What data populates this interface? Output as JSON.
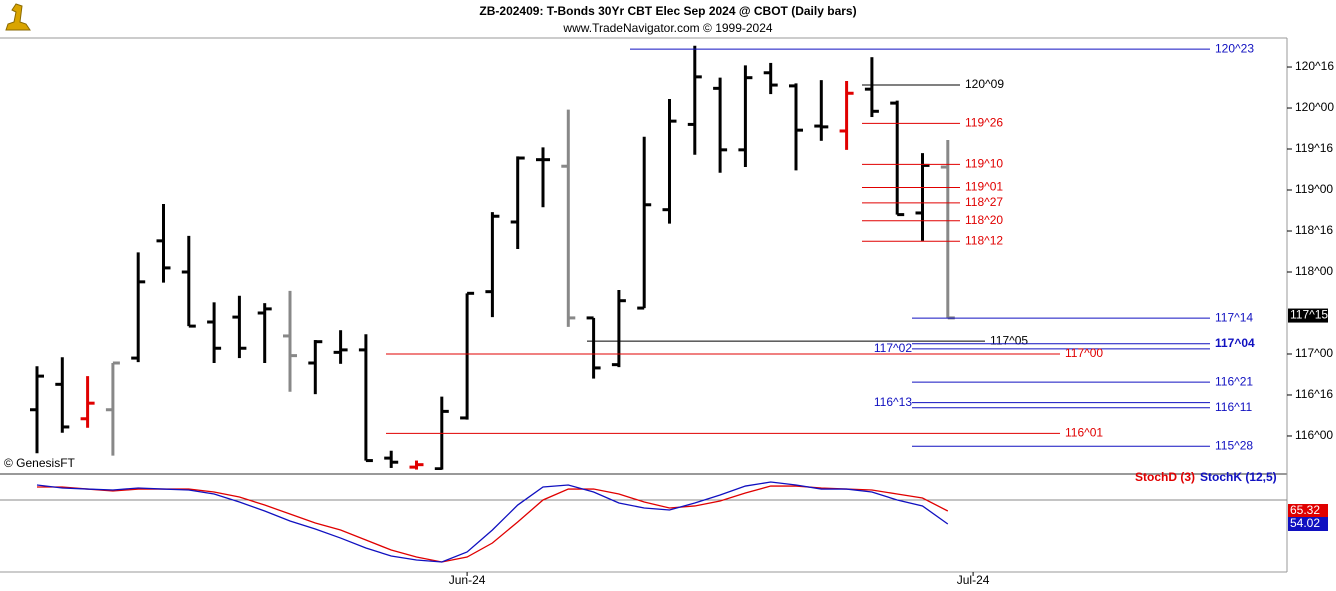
{
  "chart_data": [
    {
      "type": "ohlc",
      "title": "ZB-202409:  T-Bonds 30Yr CBT Elec Sep 2024 @ CBOT  (Daily bars)",
      "subtitle": "www.TradeNavigator.com © 1999-2024",
      "credit": "© GenesisFT",
      "categories": [
        null,
        null,
        null,
        null,
        null,
        null,
        null,
        null,
        null,
        null,
        null,
        null,
        null,
        null,
        null,
        null,
        null,
        "Jun-24",
        null,
        null,
        null,
        null,
        null,
        null,
        null,
        null,
        null,
        null,
        null,
        null,
        null,
        null,
        null,
        null,
        null,
        null,
        null,
        "Jul-24"
      ],
      "open": [
        116.32,
        116.63,
        116.21,
        116.32,
        116.95,
        118.38,
        118.0,
        117.39,
        117.45,
        117.5,
        117.22,
        116.89,
        117.02,
        117.05,
        115.73,
        115.62,
        115.6,
        116.22,
        117.76,
        118.61,
        119.37,
        119.29,
        117.44,
        116.87,
        117.56,
        118.76,
        119.8,
        120.24,
        119.49,
        120.43,
        120.27,
        119.78,
        119.72,
        120.23,
        120.06,
        118.72,
        119.28,
        null
      ],
      "high": [
        116.85,
        116.96,
        116.73,
        116.89,
        118.24,
        118.83,
        118.44,
        117.63,
        117.71,
        117.62,
        117.77,
        117.17,
        117.29,
        117.24,
        115.82,
        115.7,
        116.48,
        117.74,
        118.73,
        119.41,
        119.52,
        119.98,
        117.44,
        117.78,
        119.65,
        120.11,
        120.76,
        120.37,
        120.52,
        120.55,
        120.3,
        120.34,
        120.33,
        120.62,
        120.09,
        119.45,
        119.61,
        null
      ],
      "low": [
        115.79,
        116.04,
        116.1,
        115.76,
        116.9,
        117.87,
        117.34,
        116.89,
        116.95,
        116.89,
        116.54,
        116.51,
        116.88,
        115.7,
        115.61,
        115.59,
        115.59,
        116.2,
        117.45,
        118.28,
        118.79,
        117.33,
        116.7,
        116.84,
        117.56,
        118.59,
        119.43,
        119.21,
        119.28,
        120.17,
        119.24,
        119.6,
        119.49,
        119.89,
        118.7,
        118.38,
        117.44,
        null
      ],
      "close": [
        116.73,
        116.11,
        116.4,
        116.89,
        117.88,
        118.05,
        117.34,
        117.07,
        117.07,
        117.55,
        116.98,
        117.15,
        117.05,
        115.7,
        115.68,
        115.65,
        116.3,
        117.74,
        118.68,
        119.39,
        119.37,
        117.44,
        116.83,
        117.65,
        118.82,
        119.84,
        120.38,
        119.49,
        120.37,
        120.28,
        119.73,
        119.77,
        120.18,
        119.96,
        118.7,
        119.3,
        117.44,
        null
      ],
      "bar_colors": [
        "#000000",
        "#000000",
        "#e00000",
        "#888888",
        "#000000",
        "#000000",
        "#000000",
        "#000000",
        "#000000",
        "#000000",
        "#888888",
        "#000000",
        "#000000",
        "#000000",
        "#000000",
        "#e00000",
        "#000000",
        "#000000",
        "#000000",
        "#000000",
        "#000000",
        "#888888",
        "#000000",
        "#000000",
        "#000000",
        "#000000",
        "#000000",
        "#000000",
        "#000000",
        "#000000",
        "#000000",
        "#000000",
        "#e00000",
        "#000000",
        "#000000",
        "#000000",
        "#888888",
        null
      ],
      "ylim": [
        115.585,
        120.854
      ],
      "yticks": [
        {
          "value": 120.5,
          "label": "120^16"
        },
        {
          "value": 120,
          "label": "120^00"
        },
        {
          "value": 119.5,
          "label": "119^16"
        },
        {
          "value": 119,
          "label": "119^00"
        },
        {
          "value": 118.5,
          "label": "118^16"
        },
        {
          "value": 118,
          "label": "118^00"
        },
        {
          "value": 117,
          "label": "117^00"
        },
        {
          "value": 116.5,
          "label": "116^16"
        },
        {
          "value": 116,
          "label": "116^00"
        }
      ],
      "last_price": {
        "value": 117.46875,
        "label": "117^15"
      },
      "levels": [
        {
          "value": 120.71875,
          "label": "120^23",
          "color": "#1010c0"
        },
        {
          "value": 120.28125,
          "label": "120^09",
          "color": "#000000"
        },
        {
          "value": 119.8125,
          "label": "119^26",
          "color": "#e00000"
        },
        {
          "value": 119.3125,
          "label": "119^10",
          "color": "#e00000"
        },
        {
          "value": 119.03125,
          "label": "119^01",
          "color": "#e00000"
        },
        {
          "value": 118.84375,
          "label": "118^27",
          "color": "#e00000"
        },
        {
          "value": 118.625,
          "label": "118^20",
          "color": "#e00000"
        },
        {
          "value": 118.375,
          "label": "118^12",
          "color": "#e00000"
        },
        {
          "value": 117.4375,
          "label": "117^14",
          "color": "#1010c0"
        },
        {
          "value": 117.15625,
          "label": "117^05",
          "color": "#000000"
        },
        {
          "value": 117.125,
          "label": "117^04",
          "color": "#1010c0"
        },
        {
          "value": 117.0625,
          "label": "117^02",
          "color": "#1010c0"
        },
        {
          "value": 117.0,
          "label": "117^00",
          "color": "#e00000"
        },
        {
          "value": 116.65625,
          "label": "116^21",
          "color": "#1010c0"
        },
        {
          "value": 116.40625,
          "label": "116^13",
          "color": "#1010c0"
        },
        {
          "value": 116.34375,
          "label": "116^11",
          "color": "#1010c0"
        },
        {
          "value": 116.03125,
          "label": "116^01",
          "color": "#e00000"
        },
        {
          "value": 115.875,
          "label": "115^28",
          "color": "#1010c0"
        }
      ]
    },
    {
      "type": "line",
      "ylim": [
        12.3,
        94.0
      ],
      "series": [
        {
          "name": "StochD (3)",
          "color": "#e00000",
          "values": [
            86.2,
            86.2,
            84.4,
            82.7,
            84.4,
            84.4,
            84.4,
            81.8,
            77.5,
            70.5,
            62.7,
            54.9,
            48.8,
            40.1,
            31.4,
            25.3,
            21.0,
            25.3,
            37.5,
            55.8,
            74.9,
            84.4,
            84.4,
            80.1,
            73.1,
            67.9,
            69.7,
            74.0,
            81.0,
            87.0,
            87.0,
            85.3,
            84.4,
            83.6,
            80.1,
            76.6,
            65.32,
            null
          ]
        },
        {
          "name": "StochK (12,5)",
          "color": "#1010c0",
          "values": [
            87.9,
            85.3,
            84.4,
            83.6,
            85.3,
            84.4,
            83.6,
            80.1,
            73.1,
            65.3,
            56.6,
            49.7,
            41.8,
            33.2,
            26.2,
            22.7,
            21.0,
            29.7,
            48.8,
            70.5,
            86.2,
            87.9,
            81.8,
            72.3,
            67.9,
            66.2,
            72.3,
            79.2,
            87.0,
            90.5,
            87.9,
            84.4,
            84.4,
            81.8,
            74.9,
            69.7,
            54.02,
            null
          ]
        }
      ]
    }
  ]
}
